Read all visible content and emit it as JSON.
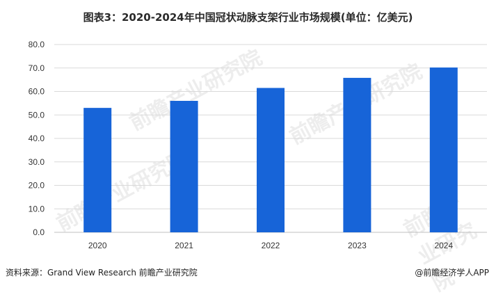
{
  "title": "图表3：2020-2024年中国冠状动脉支架行业市场规模(单位：亿美元)",
  "source": "资料来源：Grand View Research 前瞻产业研究院",
  "brand": "@前瞻经济学人APP",
  "watermark": "前瞻产业研究院",
  "colors": {
    "bar": "#1764d8",
    "grid": "#d9d9d9",
    "axis": "#bfbfbf"
  },
  "chart_data": {
    "type": "bar",
    "categories": [
      "2020",
      "2021",
      "2022",
      "2023",
      "2024"
    ],
    "values": [
      53.0,
      56.0,
      61.5,
      65.8,
      70.2
    ],
    "ylim": [
      0,
      80
    ],
    "yticks": [
      "0.0",
      "10.0",
      "20.0",
      "30.0",
      "40.0",
      "50.0",
      "60.0",
      "70.0",
      "80.0"
    ],
    "grid": true
  }
}
